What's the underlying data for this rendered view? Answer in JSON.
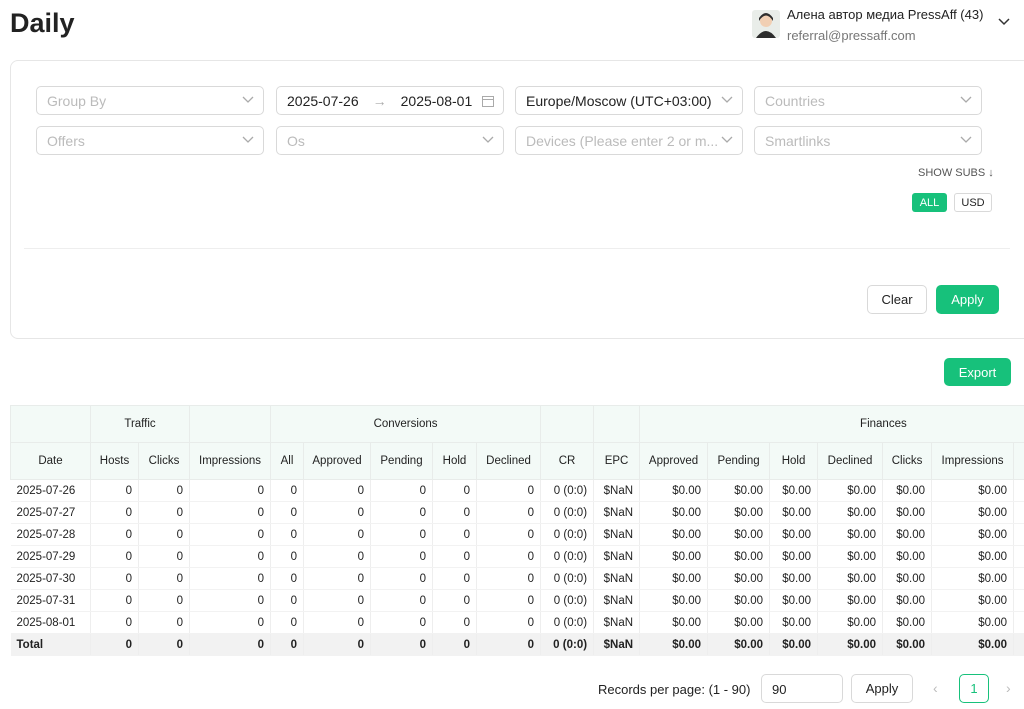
{
  "header": {
    "title": "Daily",
    "user_name": "Алена автор медиа PressAff (43)",
    "user_email": "referral@pressaff.com"
  },
  "filters": {
    "group_by": "Group By",
    "date_from": "2025-07-26",
    "date_to": "2025-08-01",
    "timezone": "Europe/Moscow (UTC+03:00)",
    "countries": "Countries",
    "offers": "Offers",
    "os": "Os",
    "devices": "Devices (Please enter 2 or m...",
    "smartlinks": "Smartlinks",
    "show_subs": "SHOW SUBS",
    "all": "ALL",
    "usd": "USD",
    "clear": "Clear",
    "apply": "Apply"
  },
  "export": "Export",
  "table": {
    "groups": [
      "Traffic",
      "Conversions",
      "Finances"
    ],
    "columns": [
      "Date",
      "Hosts",
      "Clicks",
      "Impressions",
      "All",
      "Approved",
      "Pending",
      "Hold",
      "Declined",
      "CR",
      "EPC",
      "Approved",
      "Pending",
      "Hold",
      "Declined",
      "Clicks",
      "Impressions"
    ],
    "rows": [
      [
        "2025-07-26",
        0,
        0,
        0,
        0,
        0,
        0,
        0,
        0,
        "0 (0:0)",
        "$NaN",
        "$0.00",
        "$0.00",
        "$0.00",
        "$0.00",
        "$0.00",
        "$0.00"
      ],
      [
        "2025-07-27",
        0,
        0,
        0,
        0,
        0,
        0,
        0,
        0,
        "0 (0:0)",
        "$NaN",
        "$0.00",
        "$0.00",
        "$0.00",
        "$0.00",
        "$0.00",
        "$0.00"
      ],
      [
        "2025-07-28",
        0,
        0,
        0,
        0,
        0,
        0,
        0,
        0,
        "0 (0:0)",
        "$NaN",
        "$0.00",
        "$0.00",
        "$0.00",
        "$0.00",
        "$0.00",
        "$0.00"
      ],
      [
        "2025-07-29",
        0,
        0,
        0,
        0,
        0,
        0,
        0,
        0,
        "0 (0:0)",
        "$NaN",
        "$0.00",
        "$0.00",
        "$0.00",
        "$0.00",
        "$0.00",
        "$0.00"
      ],
      [
        "2025-07-30",
        0,
        0,
        0,
        0,
        0,
        0,
        0,
        0,
        "0 (0:0)",
        "$NaN",
        "$0.00",
        "$0.00",
        "$0.00",
        "$0.00",
        "$0.00",
        "$0.00"
      ],
      [
        "2025-07-31",
        0,
        0,
        0,
        0,
        0,
        0,
        0,
        0,
        "0 (0:0)",
        "$NaN",
        "$0.00",
        "$0.00",
        "$0.00",
        "$0.00",
        "$0.00",
        "$0.00"
      ],
      [
        "2025-08-01",
        0,
        0,
        0,
        0,
        0,
        0,
        0,
        0,
        "0 (0:0)",
        "$NaN",
        "$0.00",
        "$0.00",
        "$0.00",
        "$0.00",
        "$0.00",
        "$0.00"
      ]
    ],
    "total": [
      "Total",
      0,
      0,
      0,
      0,
      0,
      0,
      0,
      0,
      "0 (0:0)",
      "$NaN",
      "$0.00",
      "$0.00",
      "$0.00",
      "$0.00",
      "$0.00",
      "$0.00"
    ]
  },
  "pagination": {
    "records_label": "Records per page: (1 - 90)",
    "per_page": "90",
    "apply": "Apply",
    "page": "1"
  }
}
